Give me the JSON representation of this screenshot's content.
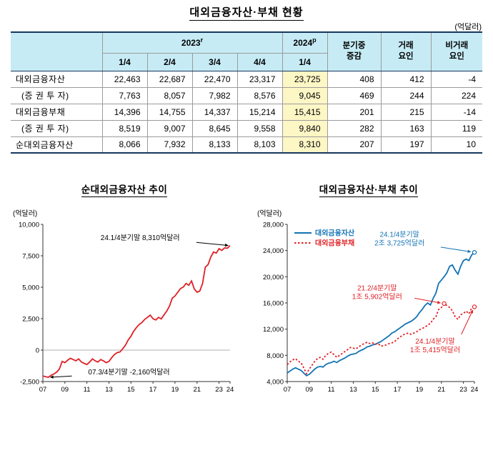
{
  "page": {
    "title": "대외금융자산·부채 현황",
    "unit": "(억달러)"
  },
  "table": {
    "group_2023": "2023",
    "group_2023_sup": "r",
    "group_2024": "2024",
    "group_2024_sup": "p",
    "quarters_2023": [
      "1/4",
      "2/4",
      "3/4",
      "4/4"
    ],
    "quarter_2024": "1/4",
    "col_change": "분기중\n증감",
    "col_transaction": "거래\n요인",
    "col_nontransaction": "비거래\n요인",
    "rows": [
      {
        "label": "대외금융자산",
        "values": [
          "22,463",
          "22,687",
          "22,470",
          "23,317",
          "23,725",
          "408",
          "412",
          "-4"
        ]
      },
      {
        "label": "(증 권 투 자)",
        "values": [
          "7,763",
          "8,057",
          "7,982",
          "8,576",
          "9,045",
          "469",
          "244",
          "224"
        ]
      },
      {
        "label": "대외금융부채",
        "values": [
          "14,396",
          "14,755",
          "14,337",
          "15,214",
          "15,415",
          "201",
          "215",
          "-14"
        ]
      },
      {
        "label": "(증 권 투 자)",
        "values": [
          "8,519",
          "9,007",
          "8,645",
          "9,558",
          "9,840",
          "282",
          "163",
          "119"
        ]
      },
      {
        "label": "순대외금융자산",
        "values": [
          "8,066",
          "7,932",
          "8,133",
          "8,103",
          "8,310",
          "207",
          "197",
          "10"
        ]
      }
    ]
  },
  "chart_data": [
    {
      "type": "line",
      "title": "순대외금융자산 추이",
      "unit": "(억달러)",
      "ylim": [
        -2500,
        10000
      ],
      "zero_line": true,
      "legend": false,
      "yticks": [
        {
          "v": -2500,
          "t": "-2,500"
        },
        {
          "v": 0,
          "t": "0"
        },
        {
          "v": 2500,
          "t": "2,500"
        },
        {
          "v": 5000,
          "t": "5,000"
        },
        {
          "v": 7500,
          "t": "7,500"
        },
        {
          "v": 10000,
          "t": "10,000"
        }
      ],
      "xticks": [
        {
          "i": 0,
          "t": "07"
        },
        {
          "i": 8,
          "t": "09"
        },
        {
          "i": 16,
          "t": "11"
        },
        {
          "i": 24,
          "t": "13"
        },
        {
          "i": 32,
          "t": "15"
        },
        {
          "i": 40,
          "t": "17"
        },
        {
          "i": 48,
          "t": "19"
        },
        {
          "i": 56,
          "t": "21"
        },
        {
          "i": 64,
          "t": "23"
        },
        {
          "i": 68,
          "t": "24"
        }
      ],
      "series": [
        {
          "name": "순대외금융자산",
          "color": "#e01f25",
          "dash": null,
          "values": [
            -2050,
            -2120,
            -2160,
            -2000,
            -1900,
            -1750,
            -1500,
            -900,
            -1000,
            -800,
            -650,
            -750,
            -850,
            -700,
            -950,
            -1050,
            -1150,
            -950,
            -700,
            -850,
            -950,
            -750,
            -850,
            -1000,
            -900,
            -600,
            -350,
            -200,
            -150,
            100,
            400,
            809,
            1100,
            1500,
            1800,
            2045,
            2200,
            2450,
            2600,
            2785,
            2500,
            2400,
            2600,
            2483,
            2800,
            3100,
            3500,
            4130,
            4300,
            4600,
            4900,
            5009,
            5300,
            5150,
            5500,
            4870,
            4600,
            4700,
            5300,
            6596,
            6800,
            7400,
            7800,
            7713,
            8066,
            7932,
            8133,
            8103,
            8310
          ]
        }
      ],
      "annotations": [
        {
          "text": "24.1/4분기말 8,310억달러",
          "color": "#000000",
          "tx": 0.52,
          "ty": 0.1,
          "marker": false,
          "arrow": {
            "from": [
              0.82,
              0.115
            ],
            "s": 0,
            "i": 68
          }
        },
        {
          "text": "07.3/4분기말 -2,160억달러",
          "color": "#000000",
          "tx": 0.46,
          "ty": 0.955,
          "marker": false,
          "arrow": {
            "from": [
              0.155,
              0.965
            ],
            "s": 0,
            "i": 2
          }
        }
      ]
    },
    {
      "type": "line",
      "title": "대외금융자산·부채 추이",
      "unit": "(억달러)",
      "ylim": [
        4000,
        28000
      ],
      "zero_line": false,
      "legend": true,
      "yticks": [
        {
          "v": 4000,
          "t": "4,000"
        },
        {
          "v": 8000,
          "t": "8,000"
        },
        {
          "v": 12000,
          "t": "12,000"
        },
        {
          "v": 16000,
          "t": "16,000"
        },
        {
          "v": 20000,
          "t": "20,000"
        },
        {
          "v": 24000,
          "t": "24,000"
        },
        {
          "v": 28000,
          "t": "28,000"
        }
      ],
      "xticks": [
        {
          "i": 0,
          "t": "07"
        },
        {
          "i": 8,
          "t": "09"
        },
        {
          "i": 16,
          "t": "11"
        },
        {
          "i": 24,
          "t": "13"
        },
        {
          "i": 32,
          "t": "15"
        },
        {
          "i": 40,
          "t": "17"
        },
        {
          "i": 48,
          "t": "19"
        },
        {
          "i": 56,
          "t": "21"
        },
        {
          "i": 64,
          "t": "23"
        },
        {
          "i": 68,
          "t": "24"
        }
      ],
      "series": [
        {
          "name": "대외금융자산",
          "color": "#1273b4",
          "dash": null,
          "values": [
            5300,
            5600,
            5900,
            6100,
            5900,
            5700,
            5300,
            4900,
            5100,
            5500,
            5900,
            6200,
            6300,
            6200,
            6600,
            6800,
            6900,
            7100,
            6900,
            7200,
            7400,
            7600,
            7900,
            8100,
            8200,
            8300,
            8600,
            8800,
            9000,
            9300,
            9400,
            9600,
            9700,
            9900,
            10100,
            10400,
            10700,
            11000,
            11400,
            11600,
            11900,
            12200,
            12500,
            12800,
            13000,
            13200,
            13500,
            13900,
            14500,
            15000,
            15600,
            16000,
            15700,
            16700,
            17500,
            19000,
            19500,
            20000,
            20600,
            21600,
            21800,
            21000,
            20400,
            21600,
            22463,
            22687,
            22470,
            23317,
            23725
          ]
        },
        {
          "name": "대외금융부채",
          "color": "#e01f25",
          "dash": "2.5,2.5",
          "values": [
            6600,
            7000,
            7300,
            7500,
            7100,
            6900,
            6100,
            5200,
            5900,
            6500,
            7100,
            7500,
            7700,
            7400,
            8000,
            8300,
            8500,
            8100,
            7700,
            8000,
            8300,
            8600,
            8900,
            9200,
            9100,
            9000,
            9300,
            9600,
            9800,
            10000,
            9800,
            9900,
            9700,
            9800,
            9400,
            9500,
            9600,
            9800,
            9900,
            10100,
            10500,
            10800,
            11100,
            11300,
            11400,
            11200,
            11400,
            11600,
            11900,
            12100,
            12300,
            12600,
            12900,
            13500,
            13900,
            15000,
            15300,
            15902,
            15600,
            15300,
            14800,
            13900,
            13500,
            14200,
            14396,
            14755,
            14337,
            15214,
            15415
          ]
        }
      ],
      "annotations": [
        {
          "text": [
            "24.1/4분기말",
            "2조 3,725억달러"
          ],
          "color": "#1273b4",
          "tx": 0.6,
          "ty": 0.08,
          "marker": true,
          "arrow": {
            "from": [
              0.82,
              0.145
            ],
            "s": 0,
            "i": 68
          }
        },
        {
          "text": [
            "21.2/4분기말",
            "1조 5,902억달러"
          ],
          "color": "#e01f25",
          "tx": 0.48,
          "ty": 0.42,
          "marker": true,
          "arrow": {
            "from": [
              0.68,
              0.47
            ],
            "s": 1,
            "i": 57
          }
        },
        {
          "text": [
            "24.1/4분기말",
            "1조 5,415억달러"
          ],
          "color": "#e01f25",
          "tx": 0.79,
          "ty": 0.76,
          "marker": true,
          "arrow": {
            "from": [
              0.93,
              0.7
            ],
            "s": 1,
            "i": 68
          }
        }
      ]
    }
  ]
}
